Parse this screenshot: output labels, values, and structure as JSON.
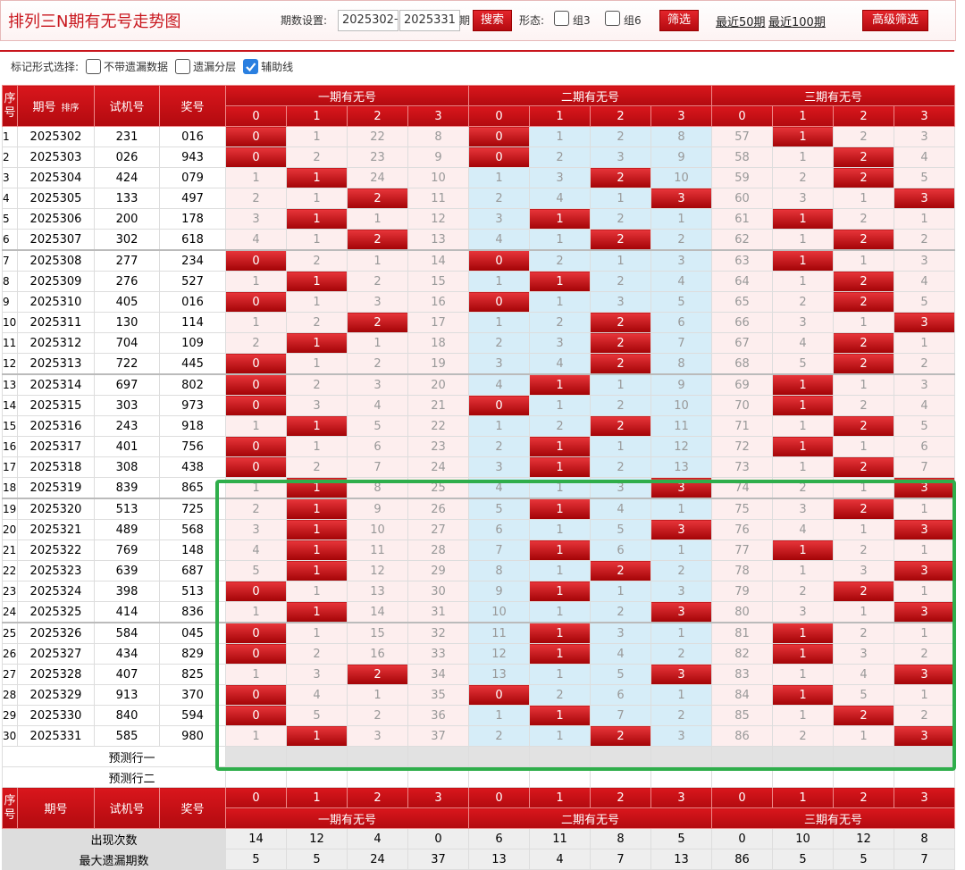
{
  "header": {
    "title": "排列三N期有无号走势图",
    "period_label": "期数设置:",
    "start": "2025302",
    "separator": "-",
    "end": "2025331",
    "period_unit": "期",
    "search": "搜索",
    "shape_label": "形态:",
    "group3": "组3",
    "group6": "组6",
    "filter": "筛选",
    "recent50": "最近50期",
    "recent100": "最近100期",
    "advanced": "高级筛选"
  },
  "options": {
    "label": "标记形式选择:",
    "items": [
      {
        "text": "不带遗漏数据",
        "checked": false
      },
      {
        "text": "遗漏分层",
        "checked": false
      },
      {
        "text": "辅助线",
        "checked": true
      }
    ]
  },
  "table": {
    "columns": {
      "index": "序号",
      "period": "期号",
      "sort": "排序",
      "trial": "试机号",
      "prize": "奖号"
    },
    "groups": [
      "一期有无号",
      "二期有无号",
      "三期有无号"
    ],
    "digits": [
      0,
      1,
      2,
      3
    ],
    "rows": [
      {
        "index": 1,
        "period": "2025302",
        "trial": "231",
        "prize": "016",
        "cells": [
          0,
          1,
          22,
          8,
          0,
          1,
          2,
          8,
          57,
          1,
          2,
          3
        ],
        "hits": [
          0,
          0,
          1
        ]
      },
      {
        "index": 2,
        "period": "2025303",
        "trial": "026",
        "prize": "943",
        "cells": [
          0,
          2,
          23,
          9,
          0,
          2,
          3,
          9,
          58,
          1,
          2,
          4
        ],
        "hits": [
          0,
          0,
          2
        ]
      },
      {
        "index": 3,
        "period": "2025304",
        "trial": "424",
        "prize": "079",
        "cells": [
          1,
          1,
          24,
          10,
          1,
          3,
          2,
          10,
          59,
          2,
          2,
          5
        ],
        "hits": [
          1,
          2,
          2
        ]
      },
      {
        "index": 4,
        "period": "2025305",
        "trial": "133",
        "prize": "497",
        "cells": [
          2,
          1,
          2,
          11,
          2,
          4,
          1,
          3,
          60,
          3,
          1,
          3
        ],
        "hits": [
          2,
          3,
          3
        ]
      },
      {
        "index": 5,
        "period": "2025306",
        "trial": "200",
        "prize": "178",
        "cells": [
          3,
          1,
          1,
          12,
          3,
          1,
          2,
          1,
          61,
          1,
          2,
          1
        ],
        "hits": [
          1,
          1,
          1
        ]
      },
      {
        "index": 6,
        "period": "2025307",
        "trial": "302",
        "prize": "618",
        "cells": [
          4,
          1,
          2,
          13,
          4,
          1,
          2,
          2,
          62,
          1,
          2,
          2
        ],
        "hits": [
          2,
          2,
          2
        ]
      },
      {
        "index": 7,
        "period": "2025308",
        "trial": "277",
        "prize": "234",
        "cells": [
          0,
          2,
          1,
          14,
          0,
          2,
          1,
          3,
          63,
          1,
          1,
          3
        ],
        "hits": [
          0,
          0,
          1
        ]
      },
      {
        "index": 8,
        "period": "2025309",
        "trial": "276",
        "prize": "527",
        "cells": [
          1,
          1,
          2,
          15,
          1,
          1,
          2,
          4,
          64,
          1,
          2,
          4
        ],
        "hits": [
          1,
          1,
          2
        ]
      },
      {
        "index": 9,
        "period": "2025310",
        "trial": "405",
        "prize": "016",
        "cells": [
          0,
          1,
          3,
          16,
          0,
          1,
          3,
          5,
          65,
          2,
          2,
          5
        ],
        "hits": [
          0,
          0,
          2
        ]
      },
      {
        "index": 10,
        "period": "2025311",
        "trial": "130",
        "prize": "114",
        "cells": [
          1,
          2,
          2,
          17,
          1,
          2,
          2,
          6,
          66,
          3,
          1,
          3
        ],
        "hits": [
          2,
          2,
          3
        ]
      },
      {
        "index": 11,
        "period": "2025312",
        "trial": "704",
        "prize": "109",
        "cells": [
          2,
          1,
          1,
          18,
          2,
          3,
          2,
          7,
          67,
          4,
          2,
          1
        ],
        "hits": [
          1,
          2,
          2
        ]
      },
      {
        "index": 12,
        "period": "2025313",
        "trial": "722",
        "prize": "445",
        "cells": [
          0,
          1,
          2,
          19,
          3,
          4,
          2,
          8,
          68,
          5,
          2,
          2
        ],
        "hits": [
          0,
          2,
          2
        ]
      },
      {
        "index": 13,
        "period": "2025314",
        "trial": "697",
        "prize": "802",
        "cells": [
          0,
          2,
          3,
          20,
          4,
          1,
          1,
          9,
          69,
          1,
          1,
          3
        ],
        "hits": [
          0,
          1,
          1
        ]
      },
      {
        "index": 14,
        "period": "2025315",
        "trial": "303",
        "prize": "973",
        "cells": [
          0,
          3,
          4,
          21,
          0,
          1,
          2,
          10,
          70,
          1,
          2,
          4
        ],
        "hits": [
          0,
          0,
          1
        ]
      },
      {
        "index": 15,
        "period": "2025316",
        "trial": "243",
        "prize": "918",
        "cells": [
          1,
          1,
          5,
          22,
          1,
          2,
          2,
          11,
          71,
          1,
          2,
          5
        ],
        "hits": [
          1,
          2,
          2
        ]
      },
      {
        "index": 16,
        "period": "2025317",
        "trial": "401",
        "prize": "756",
        "cells": [
          0,
          1,
          6,
          23,
          2,
          1,
          1,
          12,
          72,
          1,
          1,
          6
        ],
        "hits": [
          0,
          1,
          1
        ]
      },
      {
        "index": 17,
        "period": "2025318",
        "trial": "308",
        "prize": "438",
        "cells": [
          0,
          2,
          7,
          24,
          3,
          1,
          2,
          13,
          73,
          1,
          2,
          7
        ],
        "hits": [
          0,
          1,
          2
        ]
      },
      {
        "index": 18,
        "period": "2025319",
        "trial": "839",
        "prize": "865",
        "cells": [
          1,
          1,
          8,
          25,
          4,
          1,
          3,
          3,
          74,
          2,
          1,
          3
        ],
        "hits": [
          1,
          3,
          3
        ]
      },
      {
        "index": 19,
        "period": "2025320",
        "trial": "513",
        "prize": "725",
        "cells": [
          2,
          1,
          9,
          26,
          5,
          1,
          4,
          1,
          75,
          3,
          2,
          1
        ],
        "hits": [
          1,
          1,
          2
        ]
      },
      {
        "index": 20,
        "period": "2025321",
        "trial": "489",
        "prize": "568",
        "cells": [
          3,
          1,
          10,
          27,
          6,
          1,
          5,
          3,
          76,
          4,
          1,
          3
        ],
        "hits": [
          1,
          3,
          3
        ]
      },
      {
        "index": 21,
        "period": "2025322",
        "trial": "769",
        "prize": "148",
        "cells": [
          4,
          1,
          11,
          28,
          7,
          1,
          6,
          1,
          77,
          1,
          2,
          1
        ],
        "hits": [
          1,
          1,
          1
        ]
      },
      {
        "index": 22,
        "period": "2025323",
        "trial": "639",
        "prize": "687",
        "cells": [
          5,
          1,
          12,
          29,
          8,
          1,
          2,
          2,
          78,
          1,
          3,
          3
        ],
        "hits": [
          1,
          2,
          3
        ]
      },
      {
        "index": 23,
        "period": "2025324",
        "trial": "398",
        "prize": "513",
        "cells": [
          0,
          1,
          13,
          30,
          9,
          1,
          1,
          3,
          79,
          2,
          2,
          1
        ],
        "hits": [
          0,
          1,
          2
        ]
      },
      {
        "index": 24,
        "period": "2025325",
        "trial": "414",
        "prize": "836",
        "cells": [
          1,
          1,
          14,
          31,
          10,
          1,
          2,
          3,
          80,
          3,
          1,
          3
        ],
        "hits": [
          1,
          3,
          3
        ]
      },
      {
        "index": 25,
        "period": "2025326",
        "trial": "584",
        "prize": "045",
        "cells": [
          0,
          1,
          15,
          32,
          11,
          1,
          3,
          1,
          81,
          1,
          2,
          1
        ],
        "hits": [
          0,
          1,
          1
        ]
      },
      {
        "index": 26,
        "period": "2025327",
        "trial": "434",
        "prize": "829",
        "cells": [
          0,
          2,
          16,
          33,
          12,
          1,
          4,
          2,
          82,
          1,
          3,
          2
        ],
        "hits": [
          0,
          1,
          1
        ]
      },
      {
        "index": 27,
        "period": "2025328",
        "trial": "407",
        "prize": "825",
        "cells": [
          1,
          3,
          2,
          34,
          13,
          1,
          5,
          3,
          83,
          1,
          4,
          3
        ],
        "hits": [
          2,
          3,
          3
        ]
      },
      {
        "index": 28,
        "period": "2025329",
        "trial": "913",
        "prize": "370",
        "cells": [
          0,
          4,
          1,
          35,
          0,
          2,
          6,
          1,
          84,
          1,
          5,
          1
        ],
        "hits": [
          0,
          0,
          1
        ]
      },
      {
        "index": 29,
        "period": "2025330",
        "trial": "840",
        "prize": "594",
        "cells": [
          0,
          5,
          2,
          36,
          1,
          1,
          7,
          2,
          85,
          1,
          2,
          2
        ],
        "hits": [
          0,
          1,
          2
        ]
      },
      {
        "index": 30,
        "period": "2025331",
        "trial": "585",
        "prize": "980",
        "cells": [
          1,
          1,
          3,
          37,
          2,
          1,
          2,
          3,
          86,
          2,
          1,
          3
        ],
        "hits": [
          1,
          2,
          3
        ]
      }
    ],
    "predict": [
      "预测行一",
      "预测行二"
    ],
    "summary": [
      {
        "label": "出现次数",
        "values": [
          14,
          12,
          4,
          0,
          6,
          11,
          8,
          5,
          0,
          10,
          12,
          8
        ]
      },
      {
        "label": "最大遗漏期数",
        "values": [
          5,
          5,
          24,
          37,
          13,
          4,
          7,
          13,
          86,
          5,
          5,
          7
        ]
      }
    ]
  }
}
